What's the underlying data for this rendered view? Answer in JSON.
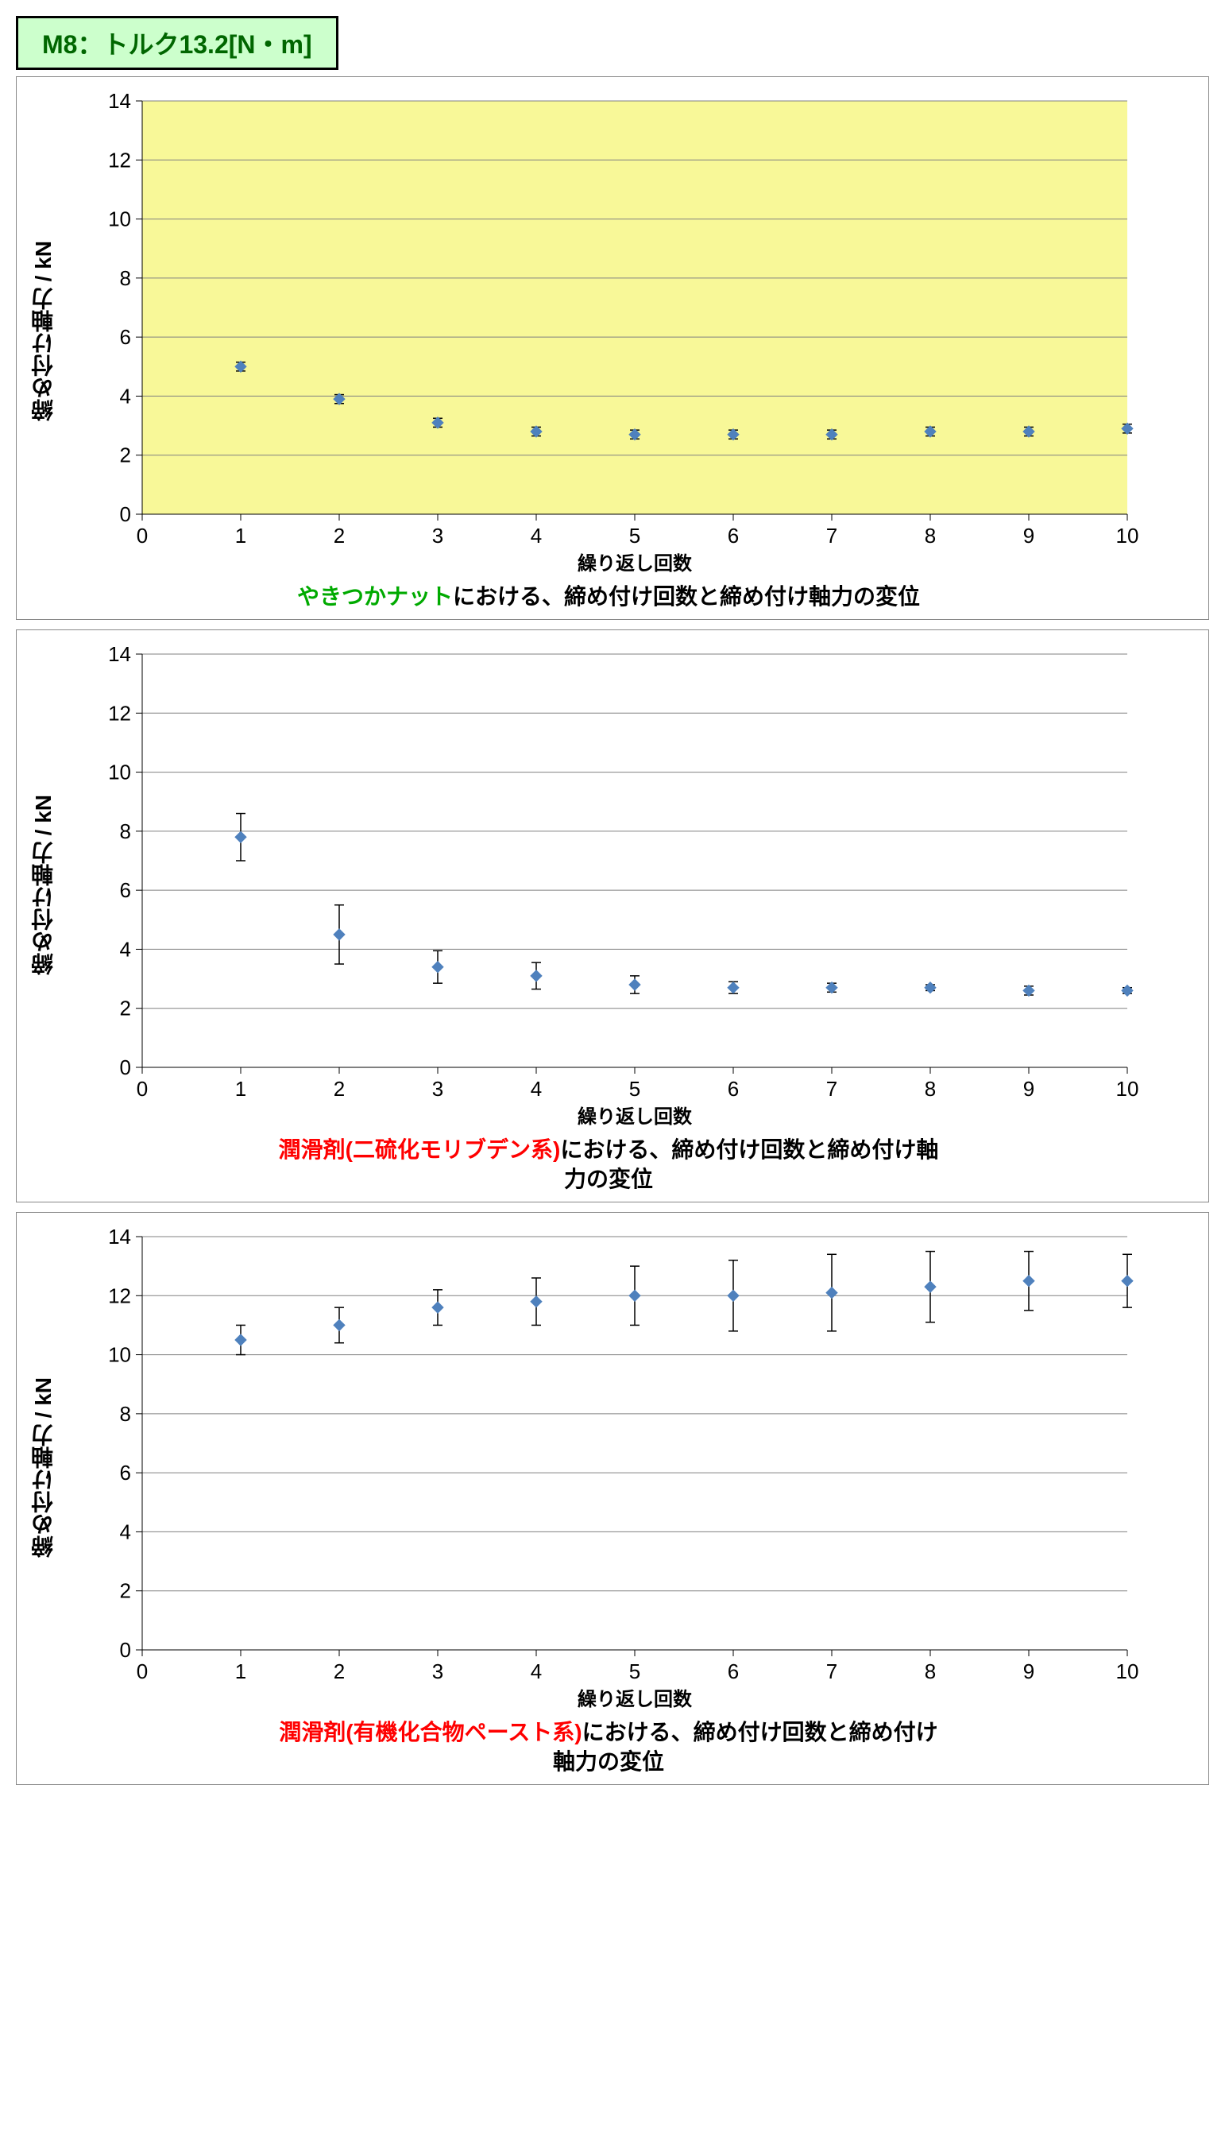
{
  "header": {
    "text": "M8：トルク13.2[N・m]",
    "bg": "#ccffcc",
    "color": "#006600"
  },
  "common": {
    "ylabel": "締め付け軸力 / kN",
    "xlabel": "繰り返し回数",
    "ylim": [
      0,
      14
    ],
    "ystep": 2,
    "xlim": [
      0,
      10
    ],
    "xstep": 1,
    "tick_fontsize": 26,
    "axlabel_fontsize": 24,
    "marker_color": "#4f81bd",
    "errorbar_color": "#000000",
    "grid_color": "#808080",
    "axis_color": "#000000",
    "text_color": "#000000",
    "marker_size": 7
  },
  "charts": [
    {
      "plot_bg": "#f8f898",
      "panel_bg": "#ffffff",
      "data": [
        {
          "x": 1,
          "y": 5.0,
          "err": 0.15
        },
        {
          "x": 2,
          "y": 3.9,
          "err": 0.15
        },
        {
          "x": 3,
          "y": 3.1,
          "err": 0.15
        },
        {
          "x": 4,
          "y": 2.8,
          "err": 0.15
        },
        {
          "x": 5,
          "y": 2.7,
          "err": 0.15
        },
        {
          "x": 6,
          "y": 2.7,
          "err": 0.15
        },
        {
          "x": 7,
          "y": 2.7,
          "err": 0.15
        },
        {
          "x": 8,
          "y": 2.8,
          "err": 0.15
        },
        {
          "x": 9,
          "y": 2.8,
          "err": 0.15
        },
        {
          "x": 10,
          "y": 2.9,
          "err": 0.15
        }
      ],
      "caption_hl": "やきつかナット",
      "caption_hl_color": "#00aa00",
      "caption_rest": "における、締め付け回数と締め付け軸力の変位",
      "caption_line2": ""
    },
    {
      "plot_bg": "#ffffff",
      "panel_bg": "#ffffff",
      "data": [
        {
          "x": 1,
          "y": 7.8,
          "err": 0.8
        },
        {
          "x": 2,
          "y": 4.5,
          "err": 1.0
        },
        {
          "x": 3,
          "y": 3.4,
          "err": 0.55
        },
        {
          "x": 4,
          "y": 3.1,
          "err": 0.45
        },
        {
          "x": 5,
          "y": 2.8,
          "err": 0.3
        },
        {
          "x": 6,
          "y": 2.7,
          "err": 0.2
        },
        {
          "x": 7,
          "y": 2.7,
          "err": 0.15
        },
        {
          "x": 8,
          "y": 2.7,
          "err": 0.1
        },
        {
          "x": 9,
          "y": 2.6,
          "err": 0.15
        },
        {
          "x": 10,
          "y": 2.6,
          "err": 0.1
        }
      ],
      "caption_hl": "潤滑剤(二硫化モリブデン系)",
      "caption_hl_color": "#ff0000",
      "caption_rest": "における、締め付け回数と締め付け軸",
      "caption_line2": "力の変位"
    },
    {
      "plot_bg": "#ffffff",
      "panel_bg": "#ffffff",
      "data": [
        {
          "x": 1,
          "y": 10.5,
          "err": 0.5
        },
        {
          "x": 2,
          "y": 11.0,
          "err": 0.6
        },
        {
          "x": 3,
          "y": 11.6,
          "err": 0.6
        },
        {
          "x": 4,
          "y": 11.8,
          "err": 0.8
        },
        {
          "x": 5,
          "y": 12.0,
          "err": 1.0
        },
        {
          "x": 6,
          "y": 12.0,
          "err": 1.2
        },
        {
          "x": 7,
          "y": 12.1,
          "err": 1.3
        },
        {
          "x": 8,
          "y": 12.3,
          "err": 1.2
        },
        {
          "x": 9,
          "y": 12.5,
          "err": 1.0
        },
        {
          "x": 10,
          "y": 12.5,
          "err": 0.9
        }
      ],
      "caption_hl": "潤滑剤(有機化合物ペースト系)",
      "caption_hl_color": "#ff0000",
      "caption_rest": "における、締め付け回数と締め付け",
      "caption_line2": "軸力の変位"
    }
  ]
}
